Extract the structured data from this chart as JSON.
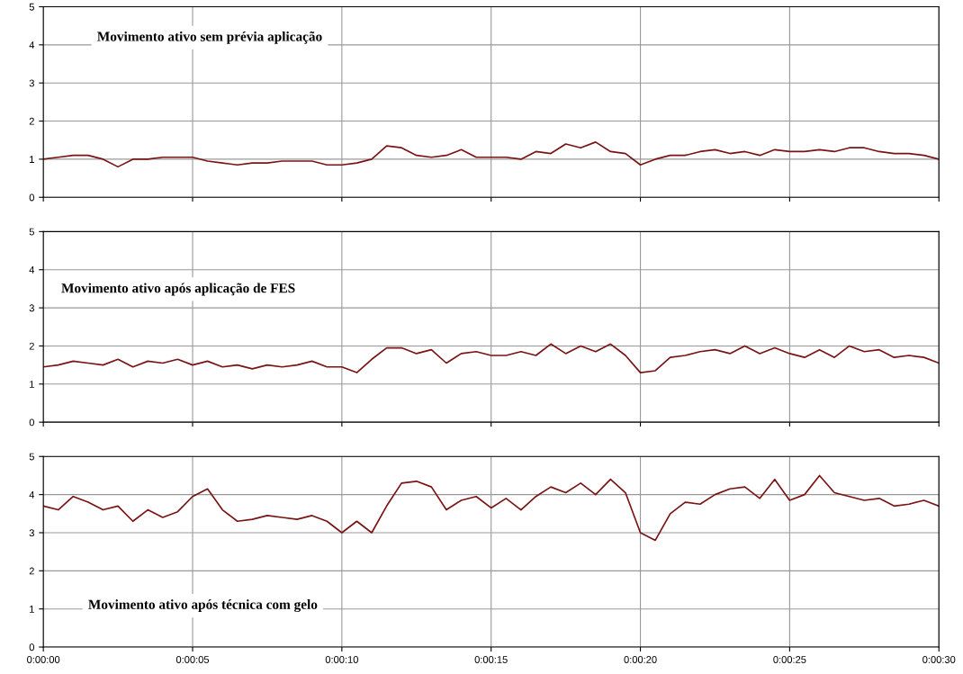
{
  "chart_data": [
    {
      "type": "line",
      "annotations": [
        "Movimento ativo sem prévia aplicação"
      ],
      "grid": true,
      "tick_labels": "y",
      "xlim": [
        0,
        30
      ],
      "xticks": [
        {
          "value": 0,
          "label": null
        },
        {
          "value": 5,
          "label": null
        },
        {
          "value": 10,
          "label": null
        },
        {
          "value": 15,
          "label": null
        },
        {
          "value": 20,
          "label": null
        },
        {
          "value": 25,
          "label": null
        },
        {
          "value": 30,
          "label": null
        }
      ],
      "ylim": [
        0,
        5
      ],
      "yticks": [
        0,
        1,
        2,
        3,
        4,
        5
      ],
      "x": [
        0,
        0.5,
        1,
        1.5,
        2,
        2.5,
        3,
        3.5,
        4,
        4.5,
        5,
        5.5,
        6,
        6.5,
        7,
        7.5,
        8,
        8.5,
        9,
        9.5,
        10,
        10.5,
        11,
        11.5,
        12,
        12.5,
        13,
        13.5,
        14,
        14.5,
        15,
        15.5,
        16,
        16.5,
        17,
        17.5,
        18,
        18.5,
        19,
        19.5,
        20,
        20.5,
        21,
        21.5,
        22,
        22.5,
        23,
        23.5,
        24,
        24.5,
        25,
        25.5,
        26,
        26.5,
        27,
        27.5,
        28,
        28.5,
        29,
        29.5,
        30
      ],
      "series": [
        {
          "color": "#7a1414",
          "values": [
            1.0,
            1.05,
            1.1,
            1.1,
            1.0,
            0.8,
            1.0,
            1.0,
            1.05,
            1.05,
            1.05,
            0.95,
            0.9,
            0.85,
            0.9,
            0.9,
            0.95,
            0.95,
            0.95,
            0.85,
            0.85,
            0.9,
            1.0,
            1.35,
            1.3,
            1.1,
            1.05,
            1.1,
            1.25,
            1.05,
            1.05,
            1.05,
            1.0,
            1.2,
            1.15,
            1.4,
            1.3,
            1.45,
            1.2,
            1.15,
            0.85,
            1.0,
            1.1,
            1.1,
            1.2,
            1.25,
            1.15,
            1.2,
            1.1,
            1.25,
            1.2,
            1.2,
            1.25,
            1.2,
            1.3,
            1.3,
            1.2,
            1.15,
            1.15,
            1.1,
            1.0
          ]
        }
      ]
    },
    {
      "type": "line",
      "annotations": [
        "Movimento ativo após aplicação de FES"
      ],
      "grid": true,
      "tick_labels": "y",
      "xlim": [
        0,
        30
      ],
      "xticks": [
        {
          "value": 0,
          "label": null
        },
        {
          "value": 5,
          "label": null
        },
        {
          "value": 10,
          "label": null
        },
        {
          "value": 15,
          "label": null
        },
        {
          "value": 20,
          "label": null
        },
        {
          "value": 25,
          "label": null
        },
        {
          "value": 30,
          "label": null
        }
      ],
      "ylim": [
        0,
        5
      ],
      "yticks": [
        0,
        1,
        2,
        3,
        4,
        5
      ],
      "x": [
        0,
        0.5,
        1,
        1.5,
        2,
        2.5,
        3,
        3.5,
        4,
        4.5,
        5,
        5.5,
        6,
        6.5,
        7,
        7.5,
        8,
        8.5,
        9,
        9.5,
        10,
        10.5,
        11,
        11.5,
        12,
        12.5,
        13,
        13.5,
        14,
        14.5,
        15,
        15.5,
        16,
        16.5,
        17,
        17.5,
        18,
        18.5,
        19,
        19.5,
        20,
        20.5,
        21,
        21.5,
        22,
        22.5,
        23,
        23.5,
        24,
        24.5,
        25,
        25.5,
        26,
        26.5,
        27,
        27.5,
        28,
        28.5,
        29,
        29.5,
        30
      ],
      "series": [
        {
          "color": "#7a1414",
          "values": [
            1.45,
            1.5,
            1.6,
            1.55,
            1.5,
            1.65,
            1.45,
            1.6,
            1.55,
            1.65,
            1.5,
            1.6,
            1.45,
            1.5,
            1.4,
            1.5,
            1.45,
            1.5,
            1.6,
            1.45,
            1.45,
            1.3,
            1.65,
            1.95,
            1.95,
            1.8,
            1.9,
            1.55,
            1.8,
            1.85,
            1.75,
            1.75,
            1.85,
            1.75,
            2.05,
            1.8,
            2.0,
            1.85,
            2.05,
            1.75,
            1.3,
            1.35,
            1.7,
            1.75,
            1.85,
            1.9,
            1.8,
            2.0,
            1.8,
            1.95,
            1.8,
            1.7,
            1.9,
            1.7,
            2.0,
            1.85,
            1.9,
            1.7,
            1.75,
            1.7,
            1.55
          ]
        }
      ]
    },
    {
      "type": "line",
      "annotations": [
        "Movimento ativo após técnica com gelo"
      ],
      "grid": true,
      "xlim": [
        0,
        30
      ],
      "xticks": [
        {
          "value": 0,
          "label": "0:00:00"
        },
        {
          "value": 5,
          "label": "0:00:05"
        },
        {
          "value": 10,
          "label": "0:00:10"
        },
        {
          "value": 15,
          "label": "0:00:15"
        },
        {
          "value": 20,
          "label": "0:00:20"
        },
        {
          "value": 25,
          "label": "0:00:25"
        },
        {
          "value": 30,
          "label": "0:00:30"
        }
      ],
      "ylim": [
        0,
        5
      ],
      "yticks": [
        0,
        1,
        2,
        3,
        4,
        5
      ],
      "x": [
        0,
        0.5,
        1,
        1.5,
        2,
        2.5,
        3,
        3.5,
        4,
        4.5,
        5,
        5.5,
        6,
        6.5,
        7,
        7.5,
        8,
        8.5,
        9,
        9.5,
        10,
        10.5,
        11,
        11.5,
        12,
        12.5,
        13,
        13.5,
        14,
        14.5,
        15,
        15.5,
        16,
        16.5,
        17,
        17.5,
        18,
        18.5,
        19,
        19.5,
        20,
        20.5,
        21,
        21.5,
        22,
        22.5,
        23,
        23.5,
        24,
        24.5,
        25,
        25.5,
        26,
        26.5,
        27,
        27.5,
        28,
        28.5,
        29,
        29.5,
        30
      ],
      "series": [
        {
          "color": "#7a1414",
          "values": [
            3.7,
            3.6,
            3.95,
            3.8,
            3.6,
            3.7,
            3.3,
            3.6,
            3.4,
            3.55,
            3.95,
            4.15,
            3.6,
            3.3,
            3.35,
            3.45,
            3.4,
            3.35,
            3.45,
            3.3,
            3.0,
            3.3,
            3.0,
            3.7,
            4.3,
            4.35,
            4.2,
            3.6,
            3.85,
            3.95,
            3.65,
            3.9,
            3.6,
            3.95,
            4.2,
            4.05,
            4.3,
            4.0,
            4.4,
            4.05,
            3.0,
            2.8,
            3.5,
            3.8,
            3.75,
            4.0,
            4.15,
            4.2,
            3.9,
            4.4,
            3.85,
            4.0,
            4.5,
            4.05,
            3.95,
            3.85,
            3.9,
            3.7,
            3.75,
            3.85,
            3.7
          ]
        }
      ]
    }
  ]
}
